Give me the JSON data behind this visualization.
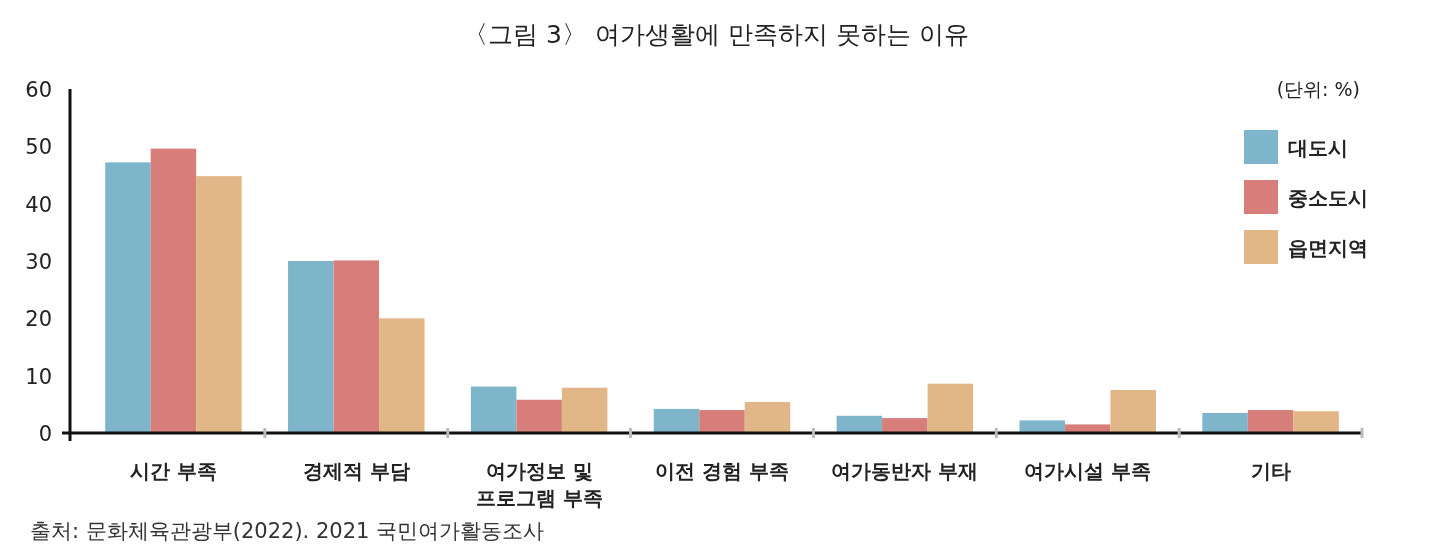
{
  "chart_data": {
    "type": "bar",
    "title": "〈그림 3〉 여가생활에 만족하지 못하는 이유",
    "categories": [
      "시간 부족",
      "경제적 부담",
      "여가정보 및 프로그램 부족",
      "이전 경험 부족",
      "여가동반자 부재",
      "여가시설 부족",
      "기타"
    ],
    "series": [
      {
        "name": "대도시",
        "color": "#7fb5cb",
        "values": [
          47.2,
          30.0,
          8.1,
          4.2,
          3.0,
          2.2,
          3.5
        ]
      },
      {
        "name": "중소도시",
        "color": "#d77e7b",
        "values": [
          49.6,
          30.1,
          5.8,
          4.0,
          2.6,
          1.5,
          4.0
        ]
      },
      {
        "name": "읍면지역",
        "color": "#e2b787",
        "values": [
          44.8,
          20.0,
          7.9,
          5.4,
          8.6,
          7.5,
          3.8
        ]
      }
    ],
    "ylim": [
      0,
      60
    ],
    "yticks": [
      0,
      10,
      20,
      30,
      40,
      50,
      60
    ],
    "grid": false,
    "legend": "top right",
    "annotations": [
      "(단위: %)",
      "출처: 문화체육관광부(2022). 2021 국민여가활동조사"
    ]
  }
}
